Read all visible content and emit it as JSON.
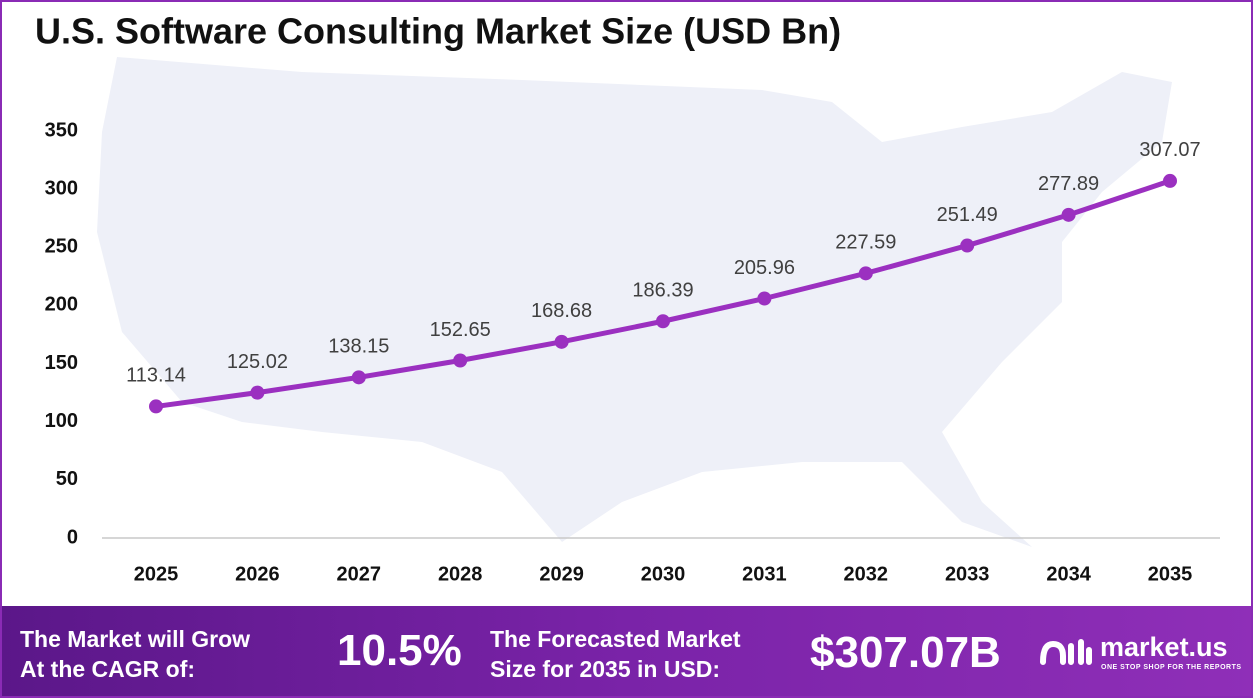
{
  "chart_data": {
    "type": "line",
    "title": "U.S. Software Consulting Market Size (USD Bn)",
    "categories": [
      "2025",
      "2026",
      "2027",
      "2028",
      "2029",
      "2030",
      "2031",
      "2032",
      "2033",
      "2034",
      "2035"
    ],
    "values": [
      113.14,
      125.02,
      138.15,
      152.65,
      168.68,
      186.39,
      205.96,
      227.59,
      251.49,
      277.89,
      307.07
    ],
    "color": "#9b30c0",
    "ylim": [
      0,
      350
    ],
    "yticks": [
      0,
      50,
      100,
      150,
      200,
      250,
      300,
      350
    ],
    "grid": false
  },
  "footer": {
    "cagr_text": [
      "The Market will Grow",
      "At the CAGR of:"
    ],
    "cagr": "10.5%",
    "forecast_text": [
      "The Forecasted Market",
      "Size for 2035 in USD:"
    ],
    "forecast": "$307.07B",
    "brand": "market.us",
    "tagline": "ONE STOP SHOP FOR THE REPORTS"
  }
}
